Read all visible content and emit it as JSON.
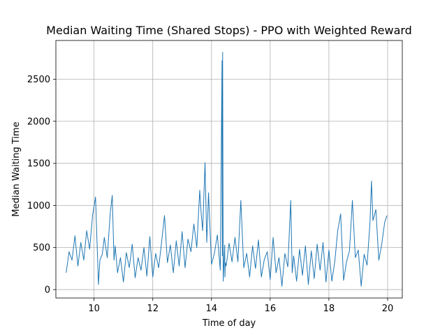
{
  "chart_data": {
    "type": "line",
    "title": "Median Waiting Time (Shared Stops) - PPO with Weighted Reward",
    "xlabel": "Time of day",
    "ylabel": "Median Waiting Time",
    "xlim": [
      8.7,
      20.5
    ],
    "ylim": [
      -100,
      2960
    ],
    "xticks": [
      10,
      12,
      14,
      16,
      18,
      20
    ],
    "yticks": [
      0,
      500,
      1000,
      1500,
      2000,
      2500
    ],
    "grid": true,
    "series": [
      {
        "color": "#1f77b4",
        "x": [
          9.05,
          9.15,
          9.25,
          9.35,
          9.45,
          9.55,
          9.65,
          9.75,
          9.85,
          9.95,
          10.05,
          10.15,
          10.2,
          10.28,
          10.35,
          10.45,
          10.55,
          10.62,
          10.68,
          10.72,
          10.8,
          10.9,
          11.0,
          11.1,
          11.2,
          11.3,
          11.4,
          11.5,
          11.6,
          11.7,
          11.8,
          11.9,
          12.0,
          12.1,
          12.2,
          12.3,
          12.4,
          12.5,
          12.6,
          12.7,
          12.8,
          12.9,
          13.0,
          13.1,
          13.2,
          13.3,
          13.4,
          13.5,
          13.6,
          13.65,
          13.7,
          13.78,
          13.84,
          13.9,
          14.0,
          14.1,
          14.2,
          14.3,
          14.36,
          14.37,
          14.38,
          14.4,
          14.45,
          14.46,
          14.47,
          14.5,
          14.6,
          14.7,
          14.8,
          14.9,
          15.0,
          15.1,
          15.2,
          15.3,
          15.4,
          15.5,
          15.6,
          15.7,
          15.8,
          15.9,
          16.0,
          16.1,
          16.2,
          16.3,
          16.4,
          16.5,
          16.6,
          16.7,
          16.75,
          16.8,
          16.9,
          17.0,
          17.1,
          17.2,
          17.3,
          17.4,
          17.5,
          17.6,
          17.7,
          17.8,
          17.9,
          18.0,
          18.1,
          18.2,
          18.3,
          18.4,
          18.5,
          18.6,
          18.7,
          18.8,
          18.9,
          19.0,
          19.1,
          19.2,
          19.3,
          19.4,
          19.45,
          19.5,
          19.6,
          19.7,
          19.8,
          19.9,
          19.98
        ],
        "y": [
          200,
          450,
          350,
          640,
          280,
          560,
          350,
          700,
          480,
          880,
          1100,
          60,
          350,
          420,
          620,
          380,
          900,
          1120,
          350,
          520,
          200,
          380,
          90,
          440,
          260,
          540,
          140,
          380,
          230,
          500,
          160,
          630,
          150,
          430,
          260,
          560,
          880,
          320,
          530,
          200,
          580,
          280,
          690,
          260,
          600,
          450,
          780,
          500,
          1180,
          900,
          700,
          1510,
          560,
          1150,
          300,
          430,
          650,
          230,
          2720,
          400,
          2820,
          100,
          530,
          150,
          320,
          280,
          550,
          330,
          620,
          330,
          1060,
          260,
          430,
          150,
          520,
          250,
          590,
          150,
          360,
          450,
          120,
          620,
          200,
          380,
          40,
          430,
          270,
          1060,
          200,
          400,
          100,
          480,
          170,
          520,
          60,
          460,
          130,
          540,
          230,
          560,
          90,
          470,
          100,
          330,
          700,
          900,
          110,
          330,
          460,
          1060,
          380,
          470,
          40,
          420,
          290,
          800,
          1290,
          820,
          950,
          350,
          540,
          800,
          880
        ]
      }
    ]
  }
}
